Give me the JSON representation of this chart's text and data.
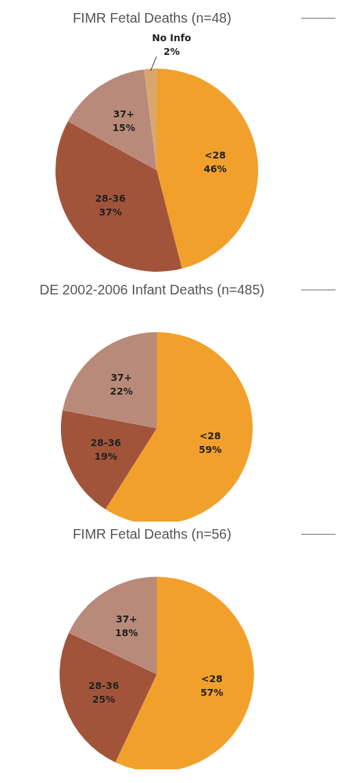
{
  "chart_data": [
    {
      "type": "pie",
      "title": "FIMR Fetal Deaths (n=48)",
      "categories": [
        "<28",
        "28-36",
        "37+",
        "No Info"
      ],
      "values": [
        46,
        37,
        15,
        2
      ],
      "value_labels": [
        "46%",
        "37%",
        "15%",
        "2%"
      ],
      "colors": [
        "#f2a02c",
        "#a2543a",
        "#b98a7a",
        "#d9a66e"
      ],
      "legend": false
    },
    {
      "type": "pie",
      "title": "DE 2002-2006 Infant Deaths (n=485)",
      "categories": [
        "<28",
        "28-36",
        "37+"
      ],
      "values": [
        59,
        19,
        22
      ],
      "value_labels": [
        "59%",
        "19%",
        "22%"
      ],
      "colors": [
        "#f2a02c",
        "#a2543a",
        "#b98a7a"
      ],
      "legend": false
    },
    {
      "type": "pie",
      "title": "FIMR Fetal Deaths (n=56)",
      "categories": [
        "<28",
        "28-36",
        "37+"
      ],
      "values": [
        57,
        25,
        18
      ],
      "value_labels": [
        "57%",
        "25%",
        "18%"
      ],
      "colors": [
        "#f2a02c",
        "#a2543a",
        "#b98a7a"
      ],
      "legend": false
    }
  ]
}
